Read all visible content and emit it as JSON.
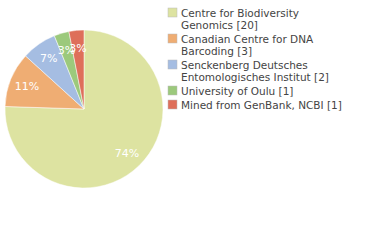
{
  "chart_data": {
    "type": "pie",
    "categories": [
      "Centre for Biodiversity Genomics [20]",
      "Canadian Centre for DNA Barcoding [3]",
      "Senckenberg Deutsches Entomologisches Institut [2]",
      "University of Oulu [1]",
      "Mined from GenBank, NCBI [1]"
    ],
    "values": [
      74,
      11,
      7,
      3,
      3
    ],
    "value_labels": [
      "74%",
      "11%",
      "7%",
      "3%",
      "3%"
    ],
    "colors": [
      "#dde3a1",
      "#efad73",
      "#a5bde2",
      "#9cc97c",
      "#de6f5a"
    ],
    "data_labels": true,
    "legend": "right"
  }
}
